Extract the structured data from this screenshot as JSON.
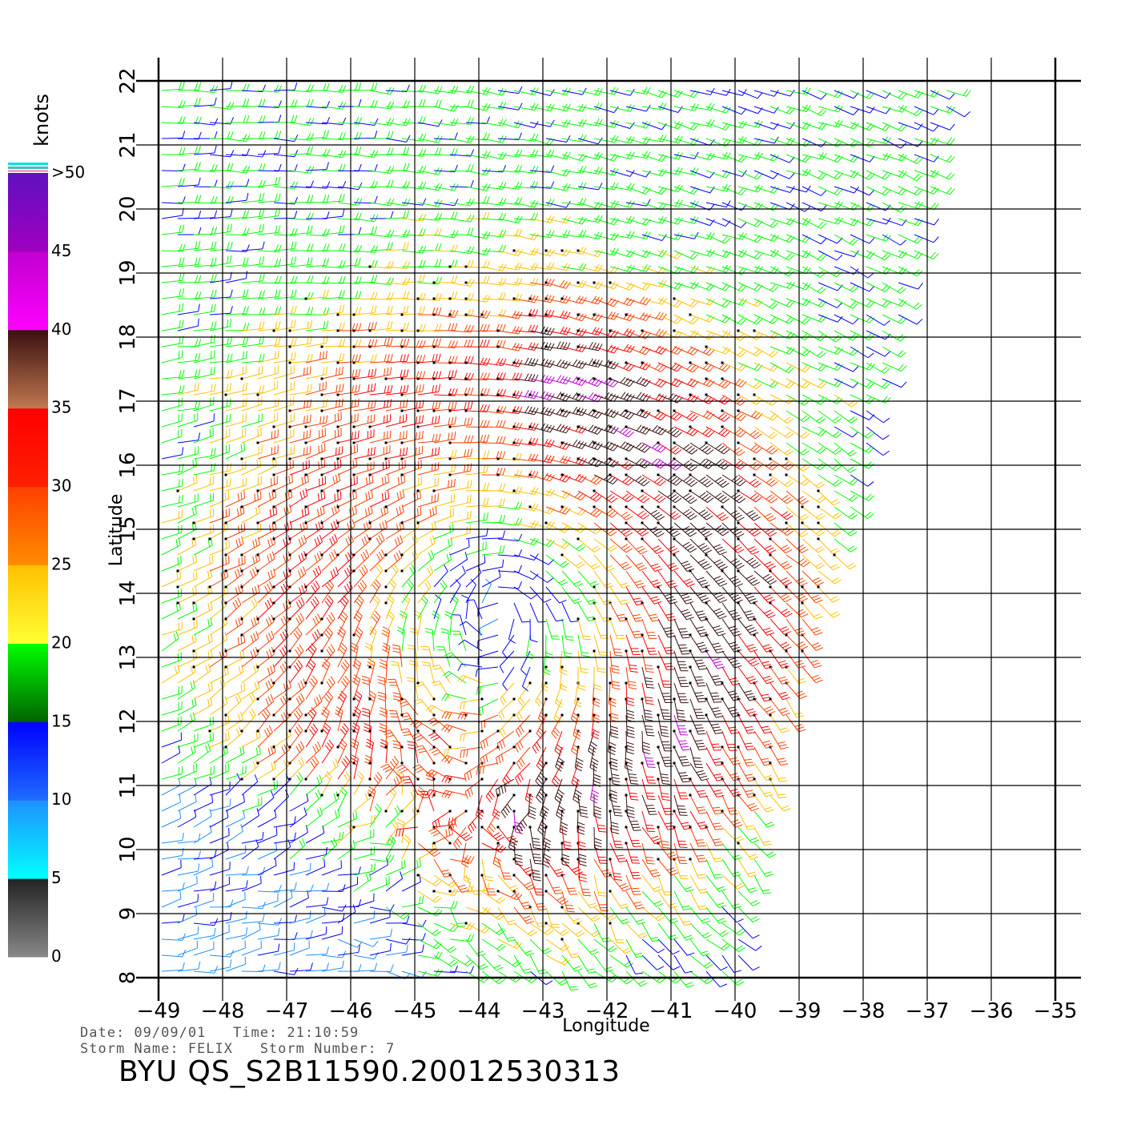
{
  "chart_data": {
    "type": "wind-barb-map",
    "xlabel": "Longitude",
    "ylabel": "Latitude",
    "xlim": [
      -49,
      -35
    ],
    "ylim": [
      8,
      22
    ],
    "x_ticks": [
      -49,
      -48,
      -47,
      -46,
      -45,
      -44,
      -43,
      -42,
      -41,
      -40,
      -39,
      -38,
      -37,
      -36,
      -35
    ],
    "y_ticks": [
      8,
      9,
      10,
      11,
      12,
      13,
      14,
      15,
      16,
      17,
      18,
      19,
      20,
      21,
      22
    ],
    "grid": true,
    "storm_center": {
      "lon": -43.7,
      "lat": 13.9
    },
    "swath_east_edge": [
      {
        "lat": 8,
        "lon": -40
      },
      {
        "lat": 12,
        "lon": -39.2
      },
      {
        "lat": 16,
        "lon": -38.0
      },
      {
        "lat": 20,
        "lon": -37.0
      },
      {
        "lat": 22,
        "lon": -36.6
      }
    ],
    "colorbar": {
      "unit_label": "knots",
      "tick_labels": [
        "0",
        "5",
        "10",
        "15",
        "20",
        "25",
        "30",
        "35",
        "40",
        "45",
        ">50"
      ],
      "bins": [
        {
          "min": 0,
          "max": 5,
          "colors": [
            "#888888",
            "#222222"
          ]
        },
        {
          "min": 5,
          "max": 10,
          "colors": [
            "#00ffff",
            "#1e90ff"
          ]
        },
        {
          "min": 10,
          "max": 15,
          "colors": [
            "#1e6cff",
            "#0000ff"
          ]
        },
        {
          "min": 15,
          "max": 20,
          "colors": [
            "#006400",
            "#00ff00"
          ]
        },
        {
          "min": 20,
          "max": 25,
          "colors": [
            "#ffff33",
            "#ffc000"
          ]
        },
        {
          "min": 25,
          "max": 30,
          "colors": [
            "#ff8c00",
            "#ff4000"
          ]
        },
        {
          "min": 30,
          "max": 35,
          "colors": [
            "#ff2000",
            "#ff0000"
          ]
        },
        {
          "min": 35,
          "max": 40,
          "colors": [
            "#c07850",
            "#3a0f0f"
          ]
        },
        {
          "min": 40,
          "max": 45,
          "colors": [
            "#ff00ff",
            "#c000d0"
          ]
        },
        {
          "min": 45,
          "max": 50,
          "colors": [
            "#a000c0",
            "#6010c0"
          ]
        }
      ]
    }
  },
  "info": {
    "line1": "Date: 09/09/01   Time: 21:10:59",
    "line2": "Storm Name: FELIX   Storm Number: 7",
    "title": "BYU QS_S2B11590.20012530313"
  }
}
